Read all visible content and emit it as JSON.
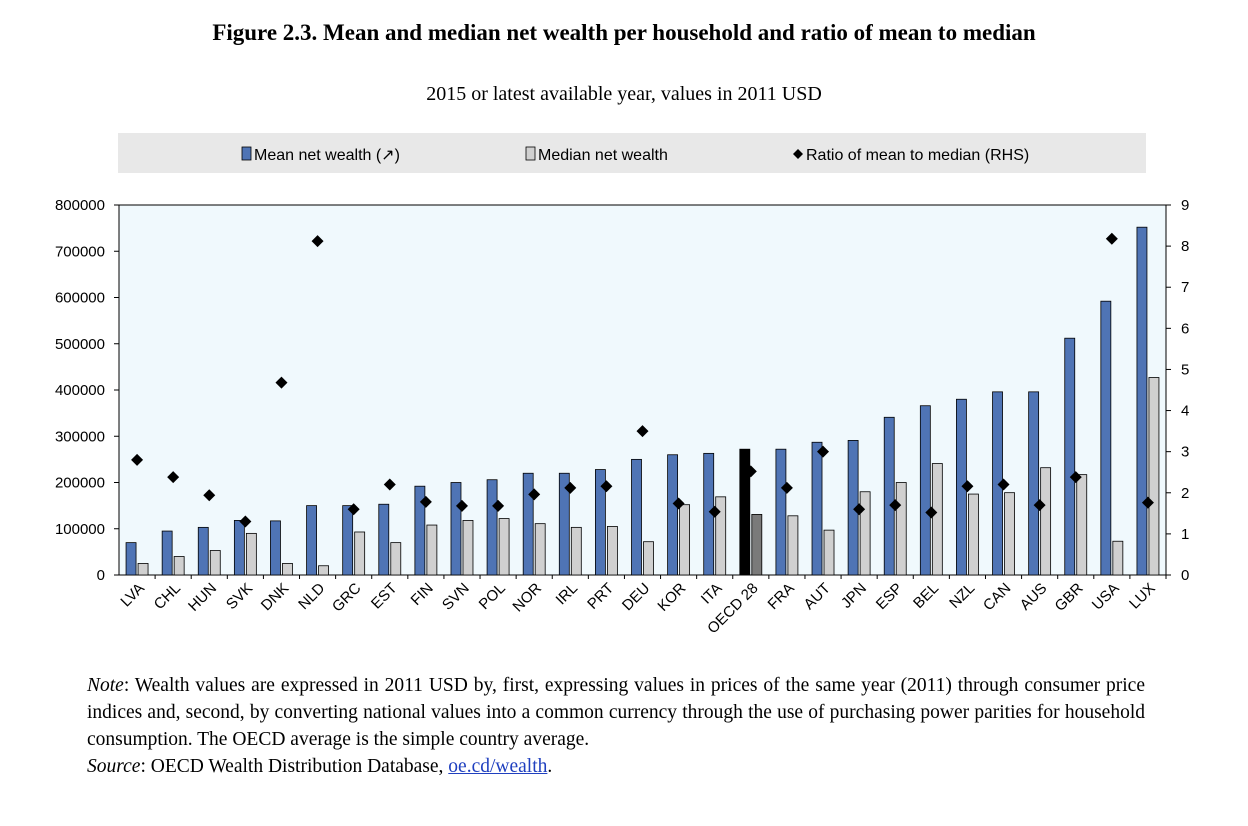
{
  "title": "Figure 2.3. Mean and median net wealth per household and ratio of mean to median",
  "subtitle": "2015 or latest available year, values in 2011 USD",
  "chart_data": {
    "type": "bar",
    "categories": [
      "LVA",
      "CHL",
      "HUN",
      "SVK",
      "DNK",
      "NLD",
      "GRC",
      "EST",
      "FIN",
      "SVN",
      "POL",
      "NOR",
      "IRL",
      "PRT",
      "DEU",
      "KOR",
      "ITA",
      "OECD 28",
      "FRA",
      "AUT",
      "JPN",
      "ESP",
      "BEL",
      "NZL",
      "CAN",
      "AUS",
      "GBR",
      "USA",
      "LUX"
    ],
    "series": [
      {
        "name": "Mean net wealth (↗)",
        "kind": "bar",
        "axis": "left",
        "values": [
          70000,
          95000,
          103000,
          118000,
          117000,
          150000,
          150000,
          153000,
          192000,
          200000,
          206000,
          220000,
          220000,
          228000,
          250000,
          260000,
          263000,
          272000,
          272000,
          287000,
          291000,
          341000,
          366000,
          380000,
          396000,
          396000,
          512000,
          592000,
          752000
        ]
      },
      {
        "name": "Median net wealth",
        "kind": "bar",
        "axis": "left",
        "values": [
          25000,
          40000,
          53000,
          90000,
          25000,
          20000,
          93000,
          70000,
          108000,
          118000,
          122000,
          111000,
          103000,
          105000,
          72000,
          152000,
          169000,
          131000,
          128000,
          97000,
          180000,
          200000,
          241000,
          175000,
          178000,
          232000,
          217000,
          73000,
          427000
        ]
      },
      {
        "name": "Ratio of mean to median (RHS)",
        "kind": "marker",
        "axis": "right",
        "values": [
          2.8,
          2.38,
          1.94,
          1.3,
          4.68,
          8.12,
          1.6,
          2.2,
          1.78,
          1.68,
          1.68,
          1.96,
          2.12,
          2.16,
          3.5,
          1.74,
          1.54,
          2.52,
          2.12,
          3.0,
          1.6,
          1.7,
          1.52,
          2.16,
          2.2,
          1.7,
          2.38,
          8.18,
          1.76
        ]
      }
    ],
    "highlight_category": "OECD 28",
    "y_left": {
      "min": 0,
      "max": 800000,
      "ticks": [
        "0",
        "100000",
        "200000",
        "300000",
        "400000",
        "500000",
        "600000",
        "700000",
        "800000"
      ]
    },
    "y_right": {
      "min": 0,
      "max": 9,
      "ticks": [
        "0",
        "1",
        "2",
        "3",
        "4",
        "5",
        "6",
        "7",
        "8",
        "9"
      ]
    },
    "legend_position": "top",
    "colors": {
      "mean": "#4f74b5",
      "mean_highlight": "#000000",
      "median": "#d0d0d0",
      "median_highlight": "#7a7a7a",
      "marker": "#000000",
      "plot_bg": "#f0f9fd",
      "legend_bg": "#e8e8e8"
    }
  },
  "notes": {
    "note_label": "Note",
    "note_text": ": Wealth values are expressed in 2011 USD by, first, expressing values in prices of the same year (2011) through consumer price indices and, second, by converting national values into a common currency through the use of purchasing power parities for household consumption. The OECD average is the simple country average.",
    "source_label": "Source",
    "source_text": ": OECD Wealth Distribution Database, ",
    "source_link": "oe.cd/wealth",
    "source_end": "."
  }
}
